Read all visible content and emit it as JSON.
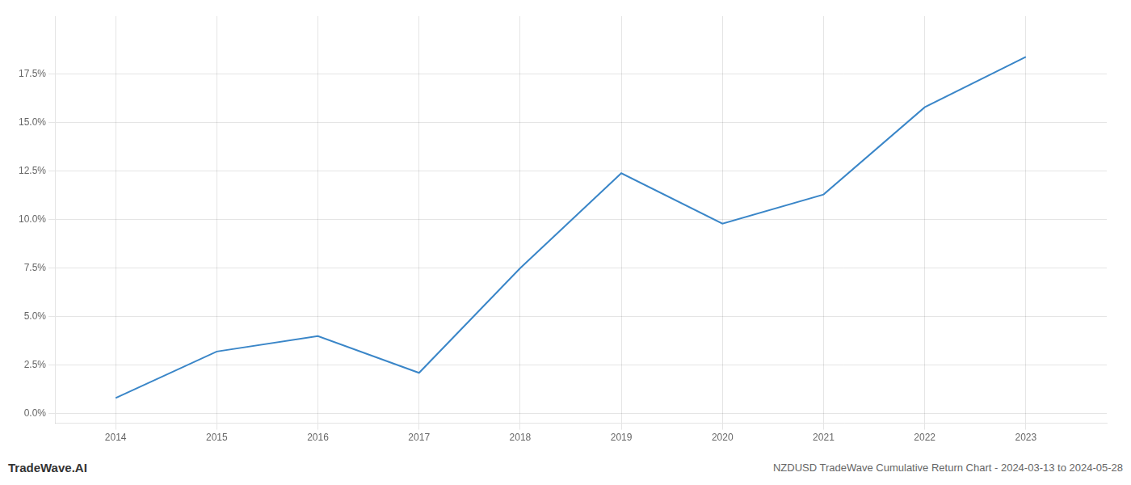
{
  "chart_data": {
    "type": "line",
    "title": "NZDUSD TradeWave Cumulative Return Chart - 2024-03-13 to 2024-05-28",
    "annotations": [
      "TradeWave.AI"
    ],
    "x": [
      2014,
      2015,
      2016,
      2017,
      2018,
      2019,
      2020,
      2021,
      2022,
      2023
    ],
    "values": [
      0.008,
      0.032,
      0.04,
      0.021,
      0.075,
      0.124,
      0.098,
      0.113,
      0.158,
      0.184
    ],
    "color": "#3a86c8",
    "xlim": [
      2013.4,
      2023.8
    ],
    "xticks": [
      2014,
      2015,
      2016,
      2017,
      2018,
      2019,
      2020,
      2021,
      2022,
      2023
    ],
    "ylim": [
      -0.005,
      0.205
    ],
    "yticks": [
      {
        "value": 0.0,
        "label": "0.0%"
      },
      {
        "value": 0.025,
        "label": "2.5%"
      },
      {
        "value": 0.05,
        "label": "5.0%"
      },
      {
        "value": 0.075,
        "label": "7.5%"
      },
      {
        "value": 0.1,
        "label": "10.0%"
      },
      {
        "value": 0.125,
        "label": "12.5%"
      },
      {
        "value": 0.15,
        "label": "15.0%"
      },
      {
        "value": 0.175,
        "label": "17.5%"
      }
    ],
    "grid": true
  }
}
